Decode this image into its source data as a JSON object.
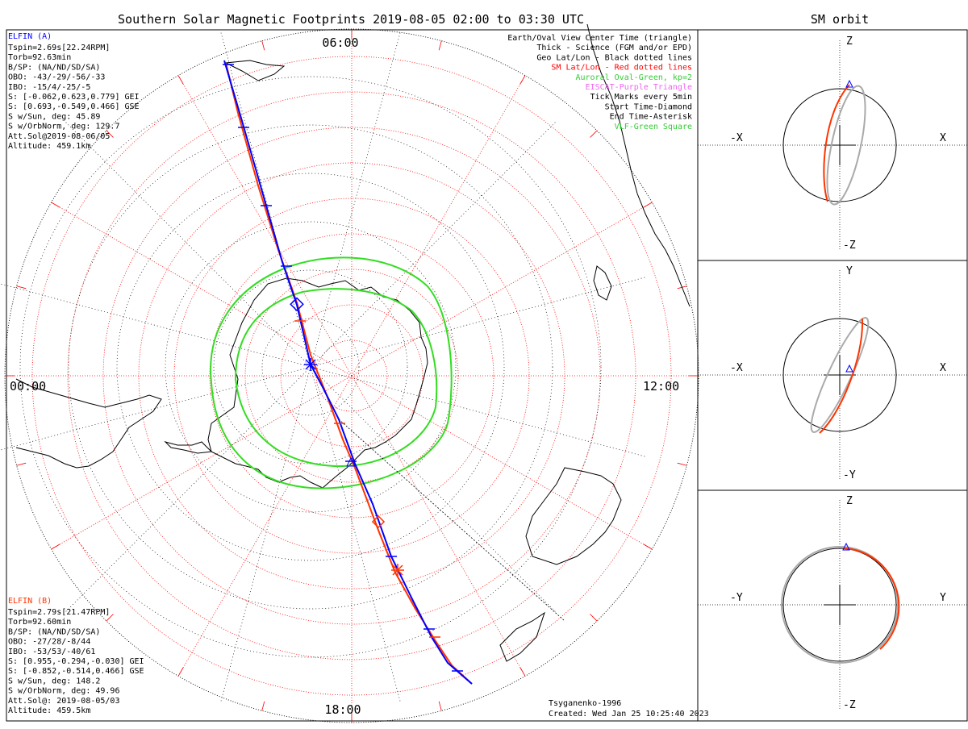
{
  "title": "Southern Solar Magnetic Footprints 2019-08-05 02:00 to 03:30 UTC",
  "orbit_title": "SM orbit",
  "time_labels": {
    "top": "06:00",
    "left": "00:00",
    "right": "12:00",
    "bottom": "18:00"
  },
  "elfin_a": {
    "name": "ELFIN (A)",
    "lines": [
      "Tspin=2.69s[22.24RPM]",
      "Torb=92.63min",
      "B/SP: (NA/ND/SD/SA)",
      "OBO: -43/-29/-56/-33",
      "IBO: -15/4/-25/-5",
      "S: [-0.062,0.623,0.779] GEI",
      "S: [0.693,-0.549,0.466] GSE",
      "S w/Sun, deg: 45.89",
      "S w/OrbNorm, deg: 129.7",
      "Att.Sol@2019-08-06/05",
      "Altitude: 459.1km"
    ]
  },
  "elfin_b": {
    "name": "ELFIN (B)",
    "lines": [
      "Tspin=2.79s[21.47RPM]",
      "Torb=92.60min",
      "B/SP: (NA/ND/SD/SA)",
      "OBO: -27/28/-8/44",
      "IBO: -53/53/-40/61",
      "S: [0.955,-0.294,-0.030] GEI",
      "S: [-0.852,-0.514,0.466] GSE",
      "S w/Sun, deg: 148.2",
      "S w/OrbNorm, deg: 49.96",
      "Att.Sol@: 2019-08-05/03",
      "Altitude: 459.5km"
    ]
  },
  "legend": [
    {
      "text": "Earth/Oval View Center Time (triangle)",
      "color": "#000000"
    },
    {
      "text": "Thick - Science (FGM and/or EPD)",
      "color": "#000000"
    },
    {
      "text": "Geo Lat/Lon - Black dotted lines",
      "color": "#000000"
    },
    {
      "text": "SM Lat/Lon - Red dotted lines",
      "color": "#ff0000"
    },
    {
      "text": "Auroral Oval-Green, kp=2",
      "color": "#33cc33"
    },
    {
      "text": "EISCAT-Purple Triangle",
      "color": "#ee66ee"
    },
    {
      "text": "Tick Marks every 5min",
      "color": "#000000"
    },
    {
      "text": "Start Time-Diamond",
      "color": "#000000"
    },
    {
      "text": "End Time-Asterisk",
      "color": "#000000"
    },
    {
      "text": "VLF-Green Square",
      "color": "#33cc33"
    }
  ],
  "credit_model": "Tsyganenko-1996",
  "credit_created": "Created: Wed Jan 25 10:25:40 2023",
  "panels": [
    {
      "top": "Z",
      "bottom": "-Z",
      "left": "-X",
      "right": "X"
    },
    {
      "top": "Y",
      "bottom": "-Y",
      "left": "-X",
      "right": "X"
    },
    {
      "top": "Z",
      "bottom": "-Z",
      "left": "-Y",
      "right": "Y"
    }
  ],
  "colors": {
    "elfin_a": "#0000ff",
    "elfin_b": "#ff3300",
    "oval": "#33dd22",
    "sm_grid": "#ff0000",
    "geo_grid": "#000000",
    "orbit_gray": "#aaaaaa"
  }
}
